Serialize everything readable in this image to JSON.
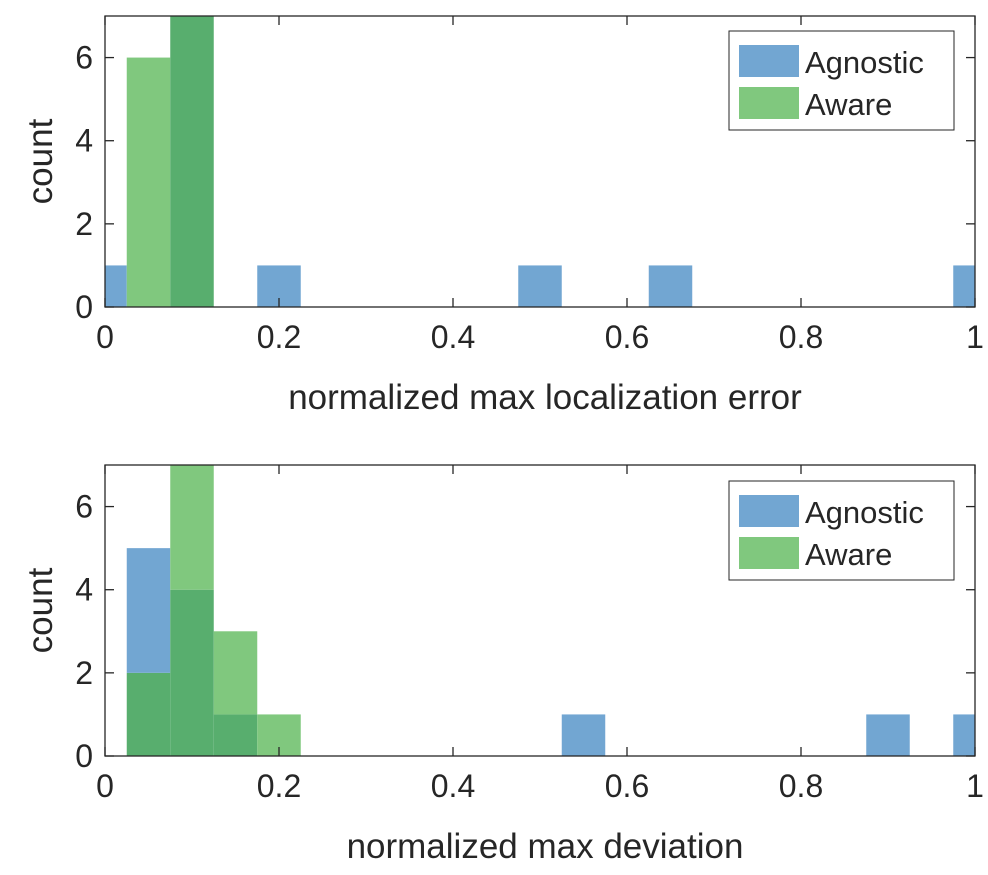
{
  "colors": {
    "agnostic": "#72a6d2",
    "aware": "#80c87e",
    "overlap": "#58ae6e",
    "axis": "#262626",
    "background": "#ffffff"
  },
  "chart_data": [
    {
      "type": "bar",
      "subtype": "histogram",
      "xlabel": "normalized max localization error",
      "ylabel": "count",
      "xlim": [
        0,
        1
      ],
      "ylim": [
        0,
        7
      ],
      "xticks": [
        "0",
        "0.2",
        "0.4",
        "0.6",
        "0.8",
        "1"
      ],
      "yticks": [
        "0",
        "2",
        "4",
        "6"
      ],
      "bin_width": 0.05,
      "bin_start": -0.025,
      "grid": false,
      "legend_position": "top-right",
      "series": [
        {
          "name": "Agnostic",
          "bins": [
            {
              "center": 0.0,
              "count": 1
            },
            {
              "center": 0.1,
              "count": 7
            },
            {
              "center": 0.2,
              "count": 1
            },
            {
              "center": 0.5,
              "count": 1
            },
            {
              "center": 0.65,
              "count": 1
            },
            {
              "center": 1.0,
              "count": 1
            }
          ]
        },
        {
          "name": "Aware",
          "bins": [
            {
              "center": 0.05,
              "count": 6
            },
            {
              "center": 0.1,
              "count": 7
            }
          ]
        }
      ]
    },
    {
      "type": "bar",
      "subtype": "histogram",
      "xlabel": "normalized max deviation",
      "ylabel": "count",
      "xlim": [
        0,
        1
      ],
      "ylim": [
        0,
        7
      ],
      "xticks": [
        "0",
        "0.2",
        "0.4",
        "0.6",
        "0.8",
        "1"
      ],
      "yticks": [
        "0",
        "2",
        "4",
        "6"
      ],
      "bin_width": 0.05,
      "bin_start": -0.025,
      "grid": false,
      "legend_position": "top-right",
      "series": [
        {
          "name": "Agnostic",
          "bins": [
            {
              "center": 0.05,
              "count": 5
            },
            {
              "center": 0.1,
              "count": 4
            },
            {
              "center": 0.15,
              "count": 1
            },
            {
              "center": 0.55,
              "count": 1
            },
            {
              "center": 0.9,
              "count": 1
            },
            {
              "center": 1.0,
              "count": 1
            }
          ]
        },
        {
          "name": "Aware",
          "bins": [
            {
              "center": 0.05,
              "count": 2
            },
            {
              "center": 0.1,
              "count": 7
            },
            {
              "center": 0.15,
              "count": 3
            },
            {
              "center": 0.2,
              "count": 1
            }
          ]
        }
      ]
    }
  ]
}
